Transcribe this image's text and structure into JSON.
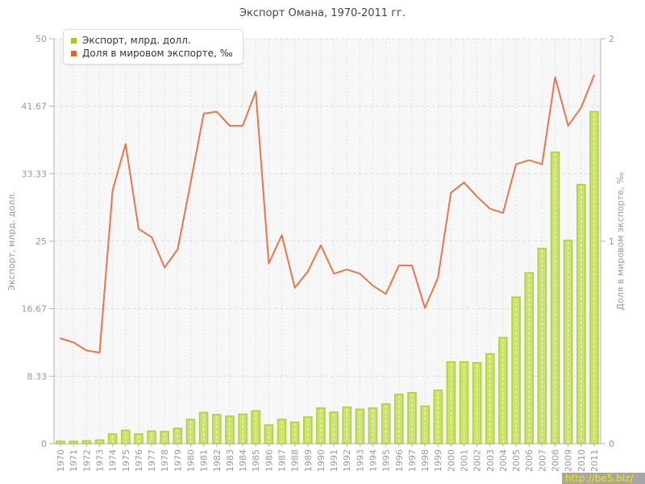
{
  "chart_data": {
    "type": "combo",
    "title": "Экспорт Омана, 1970-2011 гг.",
    "categories": [
      1970,
      1971,
      1972,
      1973,
      1974,
      1975,
      1976,
      1977,
      1978,
      1979,
      1980,
      1981,
      1982,
      1983,
      1984,
      1985,
      1986,
      1987,
      1988,
      1989,
      1990,
      1991,
      1992,
      1993,
      1994,
      1995,
      1996,
      1997,
      1998,
      1999,
      2000,
      2001,
      2002,
      2003,
      2004,
      2005,
      2006,
      2007,
      2008,
      2009,
      2010,
      2011
    ],
    "series": [
      {
        "name": "Экспорт, млрд. долл.",
        "type": "bar",
        "axis": "left",
        "values": [
          0.3,
          0.3,
          0.35,
          0.45,
          1.2,
          1.65,
          1.2,
          1.55,
          1.5,
          1.9,
          3.0,
          3.85,
          3.6,
          3.4,
          3.65,
          4.05,
          2.3,
          3.0,
          2.65,
          3.3,
          4.4,
          3.9,
          4.5,
          4.25,
          4.4,
          4.9,
          6.1,
          6.3,
          4.65,
          6.6,
          10.1,
          10.1,
          10.0,
          11.1,
          13.1,
          18.1,
          21.1,
          24.1,
          36.0,
          25.1,
          32.0,
          41.0
        ]
      },
      {
        "name": "Доля в мировом экспорте, ‰",
        "type": "line",
        "axis": "right",
        "values": [
          0.52,
          0.5,
          0.46,
          0.45,
          1.25,
          1.48,
          1.06,
          1.02,
          0.87,
          0.96,
          1.29,
          1.63,
          1.64,
          1.57,
          1.57,
          1.74,
          0.89,
          1.03,
          0.77,
          0.85,
          0.98,
          0.84,
          0.86,
          0.84,
          0.78,
          0.74,
          0.88,
          0.88,
          0.67,
          0.82,
          1.24,
          1.29,
          1.22,
          1.16,
          1.14,
          1.38,
          1.4,
          1.38,
          1.81,
          1.57,
          1.66,
          1.82
        ]
      }
    ],
    "left_axis": {
      "label": "Экспорт, млрд. долл.",
      "range": [
        0,
        50
      ],
      "ticks": [
        0,
        8.33,
        16.67,
        25,
        33.33,
        41.67,
        50
      ],
      "tick_labels": [
        "0",
        "8.33",
        "16.67",
        "25",
        "33.33",
        "41.67",
        "50"
      ]
    },
    "right_axis": {
      "label": "Доля в мировом экспорте, ‰",
      "range": [
        0,
        2
      ],
      "ticks": [
        0,
        1,
        2
      ],
      "tick_labels": [
        "0",
        "1",
        "2"
      ]
    },
    "grid": true,
    "legend_position": "top-left"
  },
  "watermark": {
    "text": "http://be5.biz/"
  },
  "colors": {
    "bar_fill": "#cbe26e",
    "bar_border": "#afd02e",
    "line": "#e8764a",
    "legend_bar_swatch": "#a6c918",
    "legend_line_swatch": "#e2662c",
    "plot_bg": "#f7f7f7",
    "grid": "#dcdcdc",
    "axis": "#b3b3b3",
    "tick_text": "#999999",
    "title_text": "#454545",
    "watermark_bg": "#a6a6a6",
    "watermark_text": "#ffe400"
  }
}
